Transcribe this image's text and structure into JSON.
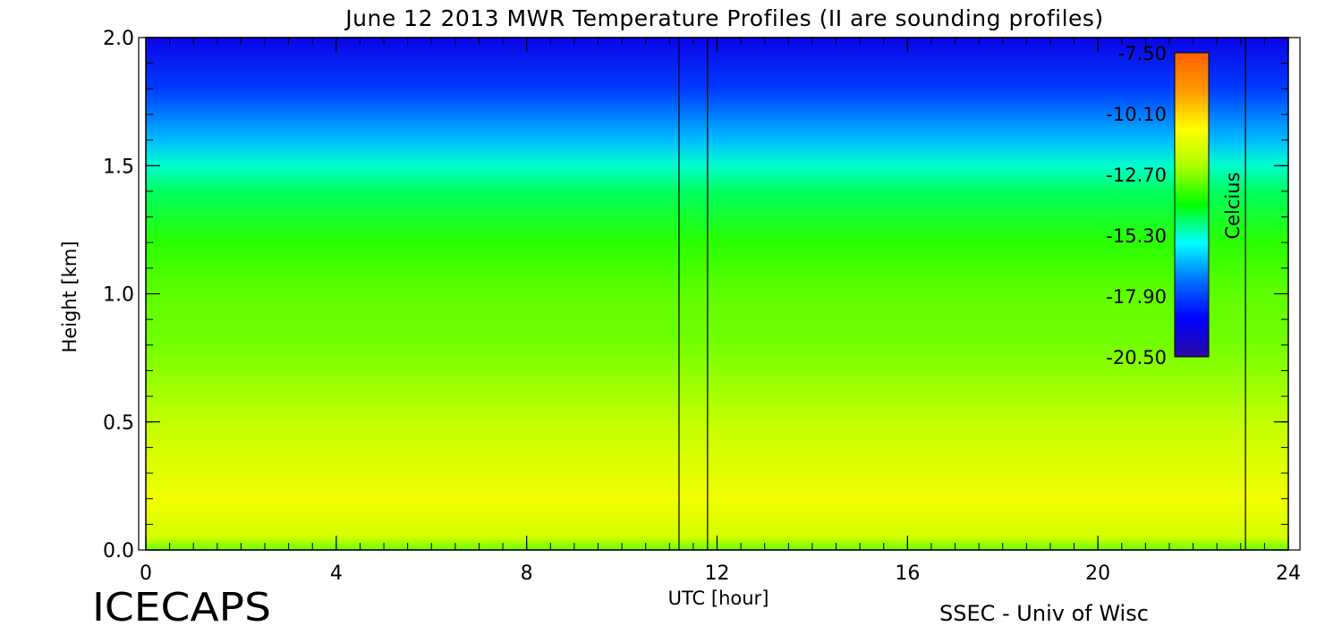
{
  "chart_data": {
    "type": "heatmap",
    "title": "June 12 2013 MWR Temperature Profiles (II are sounding profiles)",
    "xlabel": "UTC [hour]",
    "ylabel": "Height [km]",
    "xlim": [
      0,
      24
    ],
    "ylim": [
      0,
      2
    ],
    "x_ticks": [
      "0",
      "4",
      "8",
      "12",
      "16",
      "20",
      "24"
    ],
    "y_ticks": [
      "0.0",
      "0.5",
      "1.0",
      "1.5",
      "2.0"
    ],
    "colorbar": {
      "label": "Celcius",
      "range": [
        -20.5,
        -7.5
      ],
      "ticks": [
        "-7.50",
        "-10.10",
        "-12.70",
        "-15.30",
        "-17.90",
        "-20.50"
      ],
      "colors": [
        "#2a0b9e",
        "#0000ff",
        "#0070ff",
        "#00ffff",
        "#00ff00",
        "#aaff00",
        "#ffff00",
        "#ff9900",
        "#ff6000"
      ]
    },
    "sounding_times_hours": [
      11.2,
      11.8,
      23.1
    ],
    "grid": false,
    "height_profile": [
      {
        "height_km": 0.0,
        "temp_c": -13.0
      },
      {
        "height_km": 0.05,
        "temp_c": -11.6
      },
      {
        "height_km": 0.2,
        "temp_c": -11.0
      },
      {
        "height_km": 0.5,
        "temp_c": -11.9
      },
      {
        "height_km": 0.8,
        "temp_c": -12.9
      },
      {
        "height_km": 1.0,
        "temp_c": -13.1
      },
      {
        "height_km": 1.2,
        "temp_c": -13.6
      },
      {
        "height_km": 1.4,
        "temp_c": -14.6
      },
      {
        "height_km": 1.5,
        "temp_c": -15.3
      },
      {
        "height_km": 1.6,
        "temp_c": -16.4
      },
      {
        "height_km": 1.8,
        "temp_c": -18.0
      },
      {
        "height_km": 2.0,
        "temp_c": -19.3
      }
    ]
  },
  "footer": {
    "left": "ICECAPS",
    "right": "SSEC - Univ of Wisc"
  }
}
